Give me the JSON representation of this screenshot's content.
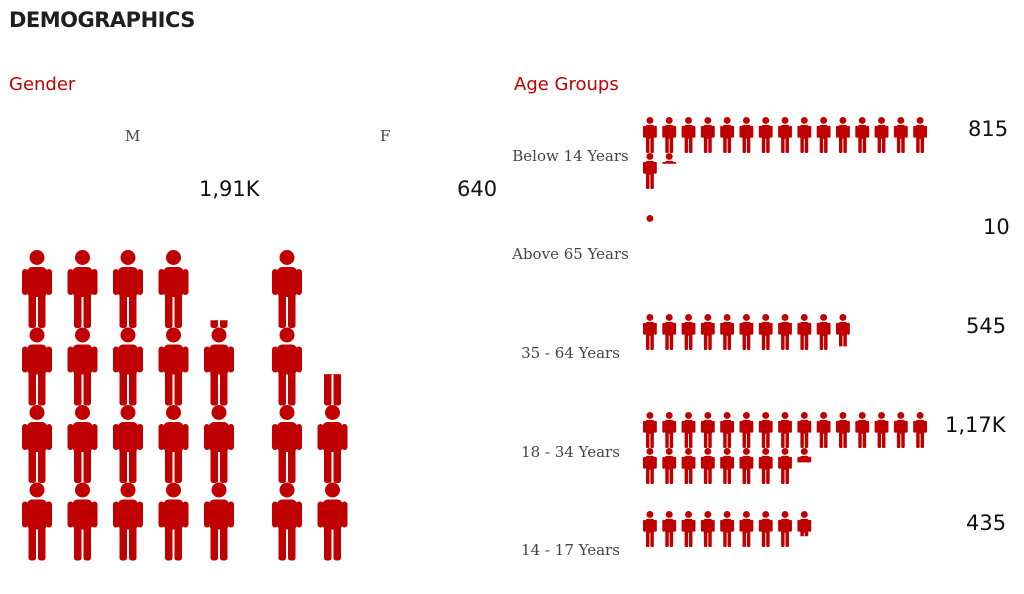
{
  "page_title": "DEMOGRAPHICS",
  "colors": {
    "accent": "#c00000"
  },
  "icon": "person-icon",
  "chart_data": [
    {
      "type": "pictograph",
      "title": "Gender",
      "categories": [
        "M",
        "F"
      ],
      "values": [
        1910,
        640
      ],
      "value_labels": [
        "1,91K",
        "640"
      ]
    },
    {
      "type": "pictograph",
      "title": "Age Groups",
      "categories": [
        "Below 14 Years",
        "Above 65 Years",
        "35 - 64 Years",
        "18 - 34 Years",
        "14 - 17 Years"
      ],
      "values": [
        815,
        10,
        545,
        1170,
        435
      ],
      "value_labels": [
        "815",
        "10",
        "545",
        "1,17K",
        "435"
      ]
    }
  ]
}
